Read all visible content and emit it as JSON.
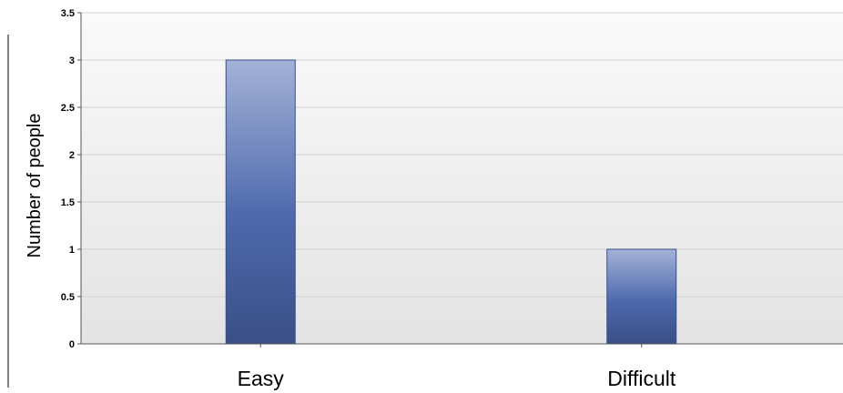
{
  "chart_data": {
    "type": "bar",
    "title": "",
    "xlabel": "",
    "ylabel": "Number of people",
    "categories": [
      "Easy",
      "Difficult"
    ],
    "values": [
      3,
      1
    ],
    "ylim": [
      0,
      3.5
    ],
    "yticks": [
      "0",
      "0.5",
      "1",
      "1.5",
      "2",
      "2.5",
      "3",
      "3.5"
    ],
    "grid": true,
    "legend": "none",
    "colors": {
      "bar_light": "#a3b2d7",
      "bar_mid": "#4e69ac",
      "bar_dark": "#3a4f86",
      "plot_bg_top": "#fafafa",
      "plot_bg_bottom": "#e3e3e3",
      "grid": "#d2d2d2",
      "axis": "#555555"
    }
  }
}
